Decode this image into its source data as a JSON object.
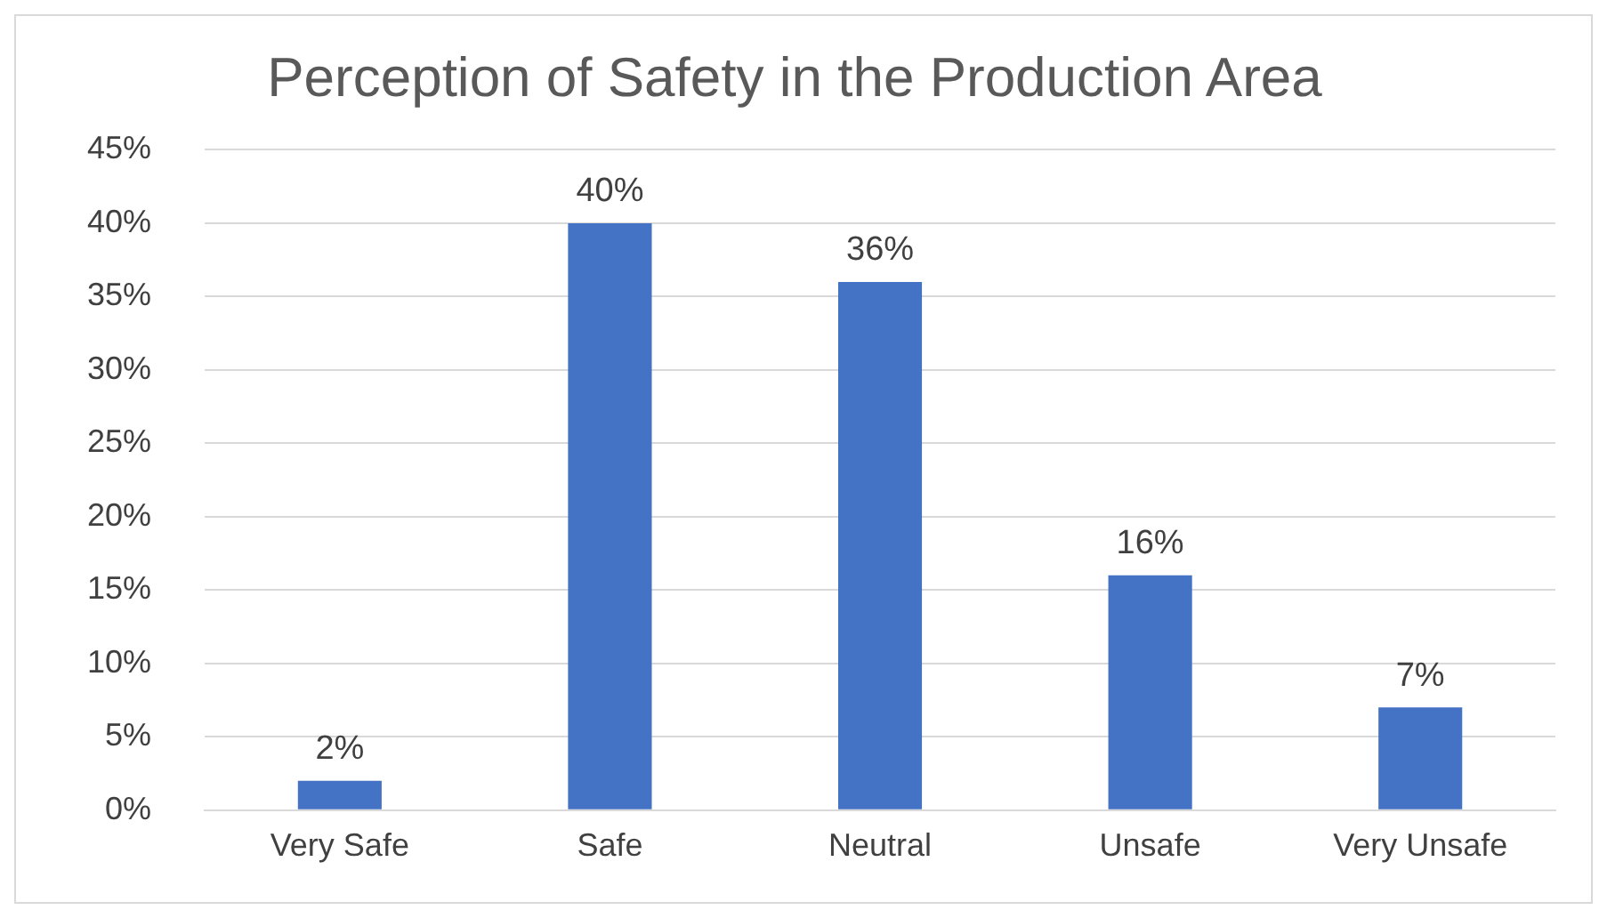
{
  "chart_data": {
    "type": "bar",
    "title": "Perception of Safety in the Production Area",
    "categories": [
      "Very Safe",
      "Safe",
      "Neutral",
      "Unsafe",
      "Very Unsafe"
    ],
    "values": [
      2,
      40,
      36,
      16,
      7
    ],
    "value_labels": [
      "2%",
      "40%",
      "36%",
      "16%",
      "7%"
    ],
    "color": "#4472c4",
    "ylim": [
      0,
      45
    ],
    "yticks": [
      {
        "value": 0,
        "label": "0%"
      },
      {
        "value": 5,
        "label": "5%"
      },
      {
        "value": 10,
        "label": "10%"
      },
      {
        "value": 15,
        "label": "15%"
      },
      {
        "value": 20,
        "label": "20%"
      },
      {
        "value": 25,
        "label": "25%"
      },
      {
        "value": 30,
        "label": "30%"
      },
      {
        "value": 35,
        "label": "35%"
      },
      {
        "value": 40,
        "label": "40%"
      },
      {
        "value": 45,
        "label": "45%"
      }
    ],
    "grid": "y",
    "legend": false
  }
}
